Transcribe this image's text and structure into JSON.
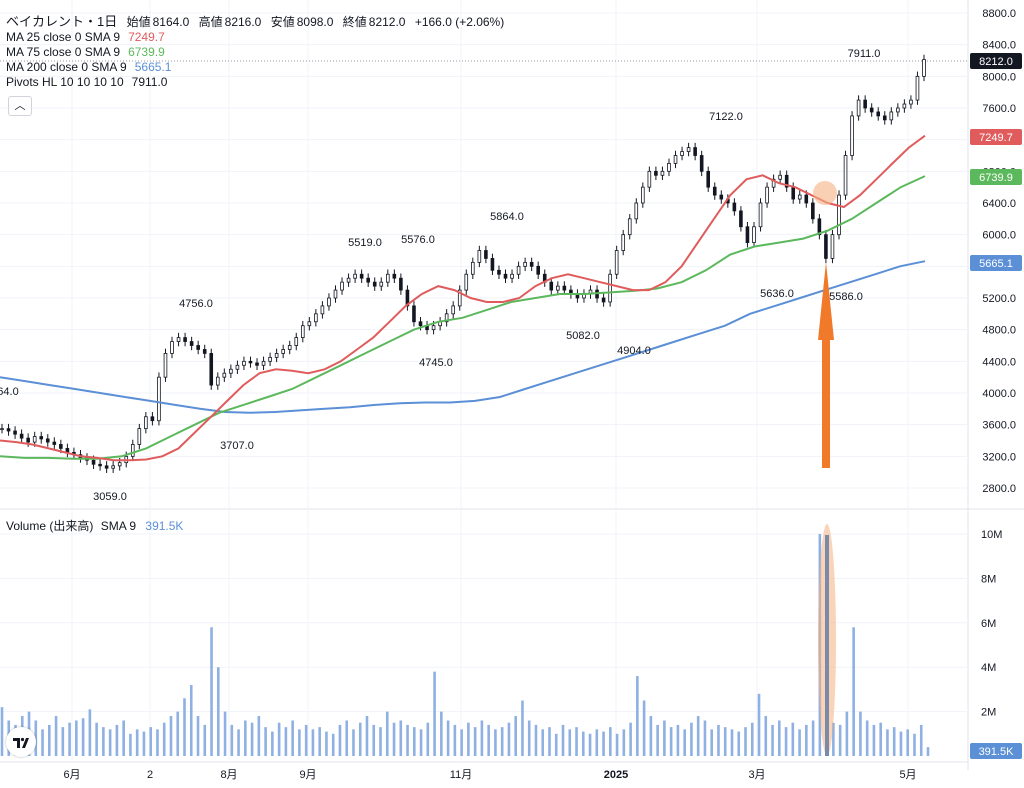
{
  "header": {
    "symbol": "ベイカレント・1日",
    "open_label": "始値",
    "open": "8164.0",
    "high_label": "高値",
    "high": "8216.0",
    "low_label": "安値",
    "low": "8098.0",
    "close_label": "終値",
    "close": "8212.0",
    "change": "+166.0 (+2.06%)"
  },
  "indicators": [
    {
      "label": "MA 25 close 0 SMA 9",
      "value": "7249.7",
      "color": "#e05c5c"
    },
    {
      "label": "MA 75 close 0 SMA 9",
      "value": "6739.9",
      "color": "#5cb85c"
    },
    {
      "label": "MA 200 close 0 SMA 9",
      "value": "5665.1",
      "color": "#5b8fd6"
    },
    {
      "label": "Pivots HL 10 10 10 10",
      "value": "7911.0",
      "color": "#131722"
    }
  ],
  "collapse_icon": "chevron-up-icon",
  "volume_legend": {
    "label": "Volume (出来高)",
    "sma": "SMA 9",
    "value": "391.5K"
  },
  "chart_data": {
    "type": "candlestick",
    "price_axis": {
      "ticks": [
        "8800.0",
        "8400.0",
        "8000.0",
        "7600.0",
        "7200.0",
        "6800.0",
        "6400.0",
        "6000.0",
        "5600.0",
        "5200.0",
        "4800.0",
        "4400.0",
        "4000.0",
        "3600.0",
        "3200.0",
        "2800.0"
      ],
      "range": [
        2500,
        8900
      ]
    },
    "volume_axis": {
      "ticks": [
        "10M",
        "8M",
        "6M",
        "4M",
        "2M"
      ],
      "range": [
        0,
        11000000
      ]
    },
    "x_axis": {
      "labels": [
        "6月",
        "2",
        "8月",
        "9月",
        "11月",
        "2025",
        "3月",
        "5月"
      ]
    },
    "price_badges": [
      {
        "value": "8212.0",
        "color": "#131722"
      },
      {
        "value": "7249.7",
        "color": "#e05c5c"
      },
      {
        "value": "6739.9",
        "color": "#5cb85c"
      },
      {
        "value": "5665.1",
        "color": "#5b8fd6"
      }
    ],
    "volume_badge": "391.5K",
    "pivot_labels": [
      "64.0",
      "3059.0",
      "3707.0",
      "4756.0",
      "4745.0",
      "5519.0",
      "5576.0",
      "5864.0",
      "5082.0",
      "4904.0",
      "7122.0",
      "5636.0",
      "5586.0",
      "7911.0"
    ],
    "close_path": [
      3550,
      3520,
      3480,
      3430,
      3380,
      3450,
      3420,
      3380,
      3350,
      3300,
      3250,
      3220,
      3180,
      3150,
      3100,
      3080,
      3050,
      3080,
      3120,
      3200,
      3350,
      3550,
      3700,
      3650,
      4200,
      4500,
      4650,
      4700,
      4650,
      4600,
      4550,
      4500,
      4100,
      4200,
      4250,
      4300,
      4350,
      4400,
      4380,
      4350,
      4400,
      4450,
      4500,
      4550,
      4600,
      4700,
      4850,
      4900,
      5000,
      5100,
      5200,
      5300,
      5400,
      5450,
      5500,
      5450,
      5400,
      5350,
      5400,
      5500,
      5450,
      5300,
      5100,
      4900,
      4850,
      4800,
      4850,
      4900,
      5000,
      5100,
      5300,
      5500,
      5650,
      5800,
      5700,
      5550,
      5500,
      5450,
      5500,
      5600,
      5650,
      5600,
      5500,
      5400,
      5300,
      5350,
      5300,
      5250,
      5200,
      5250,
      5300,
      5200,
      5150,
      5500,
      5800,
      6000,
      6200,
      6400,
      6600,
      6800,
      6750,
      6800,
      6900,
      7000,
      7050,
      7100,
      7000,
      6800,
      6600,
      6500,
      6450,
      6400,
      6300,
      6100,
      5900,
      6100,
      6400,
      6600,
      6700,
      6750,
      6600,
      6450,
      6500,
      6400,
      6200,
      6000,
      5700,
      6000,
      6500,
      7000,
      7500,
      7700,
      7600,
      7550,
      7500,
      7450,
      7550,
      7600,
      7650,
      7700,
      8000,
      8212
    ],
    "ma25": [
      3400,
      3380,
      3350,
      3300,
      3250,
      3200,
      3180,
      3150,
      3150,
      3160,
      3200,
      3300,
      3500,
      3700,
      3900,
      4100,
      4250,
      4300,
      4280,
      4250,
      4300,
      4400,
      4550,
      4700,
      4900,
      5100,
      5250,
      5350,
      5300,
      5200,
      5150,
      5150,
      5200,
      5350,
      5450,
      5500,
      5450,
      5400,
      5350,
      5300,
      5300,
      5400,
      5600,
      5900,
      6200,
      6500,
      6700,
      6750,
      6650,
      6600,
      6500,
      6400,
      6350,
      6500,
      6700,
      6900,
      7100,
      7250
    ],
    "ma75": [
      3200,
      3180,
      3180,
      3170,
      3170,
      3200,
      3300,
      3450,
      3600,
      3750,
      3850,
      3950,
      4050,
      4200,
      4350,
      4500,
      4650,
      4800,
      4900,
      4950,
      5050,
      5150,
      5200,
      5250,
      5250,
      5270,
      5290,
      5320,
      5400,
      5550,
      5750,
      5850,
      5900,
      5950,
      6050,
      6200,
      6400,
      6600,
      6740
    ],
    "ma200": [
      4200,
      4150,
      4100,
      4050,
      4000,
      3950,
      3900,
      3850,
      3800,
      3760,
      3750,
      3760,
      3780,
      3800,
      3820,
      3850,
      3870,
      3880,
      3880,
      3900,
      3950,
      4050,
      4150,
      4250,
      4350,
      4450,
      4550,
      4650,
      4750,
      4850,
      5000,
      5100,
      5200,
      5300,
      5400,
      5500,
      5600,
      5665
    ],
    "volume": [
      2.2,
      1.6,
      1.4,
      1.8,
      2.0,
      1.6,
      1.2,
      1.4,
      1.8,
      1.3,
      1.5,
      1.6,
      1.7,
      2.1,
      1.5,
      1.3,
      1.2,
      1.4,
      1.6,
      1.0,
      1.2,
      1.1,
      1.3,
      1.2,
      1.5,
      1.8,
      2.0,
      2.6,
      3.2,
      1.8,
      1.4,
      5.8,
      4.0,
      2.0,
      1.4,
      1.2,
      1.6,
      1.5,
      1.8,
      1.3,
      1.1,
      1.5,
      1.3,
      1.6,
      1.2,
      1.4,
      1.2,
      1.3,
      1.1,
      1.0,
      1.4,
      1.6,
      1.2,
      1.5,
      1.8,
      1.4,
      1.3,
      2.0,
      1.5,
      1.6,
      1.4,
      1.3,
      1.2,
      1.5,
      3.8,
      2.0,
      1.6,
      1.4,
      1.2,
      1.5,
      1.3,
      1.6,
      1.4,
      1.2,
      1.3,
      1.5,
      1.8,
      2.5,
      1.6,
      1.4,
      1.2,
      1.3,
      1.0,
      1.4,
      1.2,
      1.3,
      1.1,
      1.0,
      1.2,
      1.1,
      1.3,
      1.0,
      1.2,
      1.5,
      3.6,
      2.5,
      1.8,
      1.4,
      1.6,
      1.3,
      1.4,
      1.2,
      1.5,
      1.8,
      1.6,
      1.2,
      1.4,
      1.3,
      1.2,
      1.1,
      1.3,
      1.5,
      2.8,
      1.8,
      1.4,
      1.6,
      1.3,
      1.5,
      1.2,
      1.4,
      1.6,
      10.0,
      1.8,
      1.5,
      1.4,
      2.0,
      5.8,
      2.0,
      1.6,
      1.4,
      1.5,
      1.2,
      1.3,
      1.1,
      1.2,
      1.0,
      1.4,
      0.4
    ],
    "volume_units": "M",
    "annotations": [
      {
        "type": "arrow-up",
        "color": "#f07a2a"
      },
      {
        "type": "highlight-circle",
        "color": "#f5b080"
      },
      {
        "type": "highlight-ellipse",
        "color": "#f5b080"
      }
    ]
  }
}
